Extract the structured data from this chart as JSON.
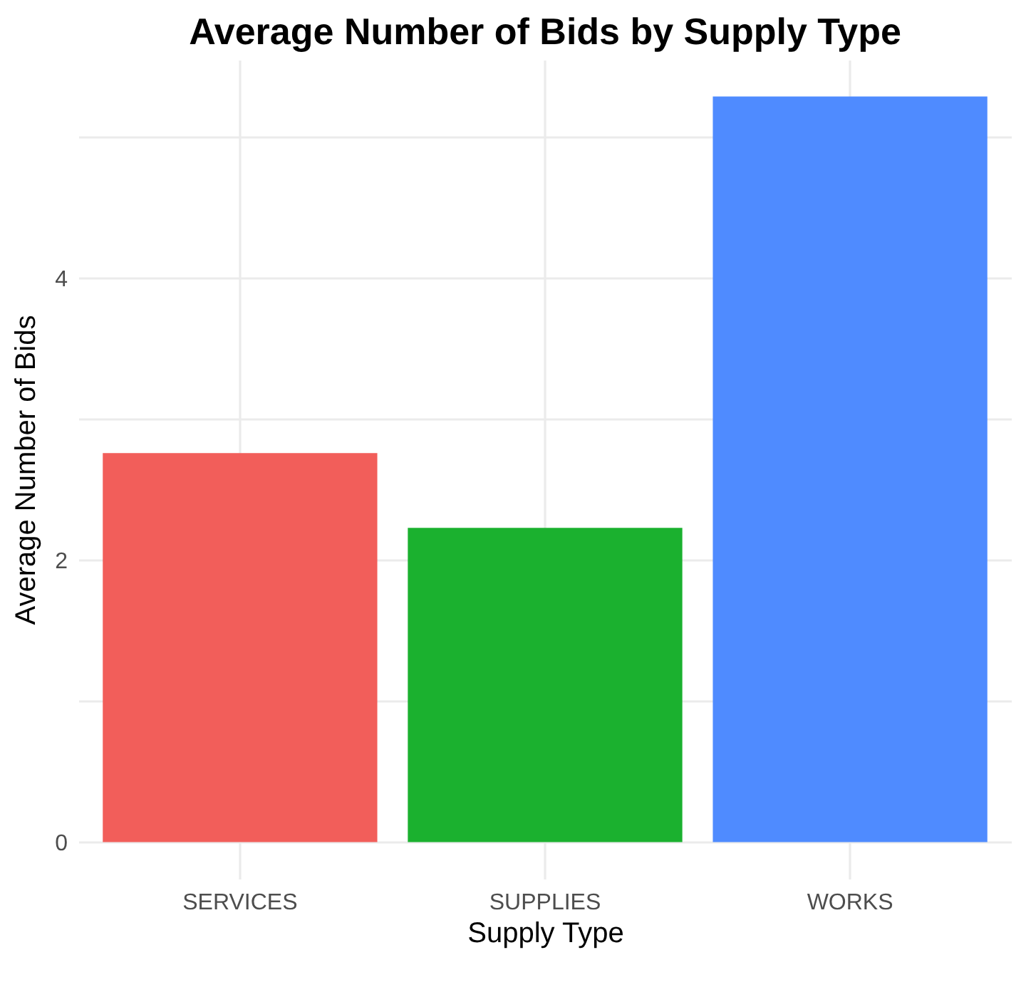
{
  "chart_data": {
    "type": "bar",
    "title": "Average Number of Bids by Supply Type",
    "xlabel": "Supply Type",
    "ylabel": "Average Number of Bids",
    "categories": [
      "SERVICES",
      "SUPPLIES",
      "WORKS"
    ],
    "values": [
      2.76,
      2.23,
      5.29
    ],
    "colors": [
      "#f25e5a",
      "#1bb12f",
      "#4f8bff"
    ],
    "ylim": [
      -0.26,
      5.55
    ],
    "yticks": [
      0,
      {
        "value": 1,
        "label": null
      },
      2,
      {
        "value": 3,
        "label": null
      },
      4,
      {
        "value": 5,
        "label": null
      }
    ],
    "grid": true
  }
}
